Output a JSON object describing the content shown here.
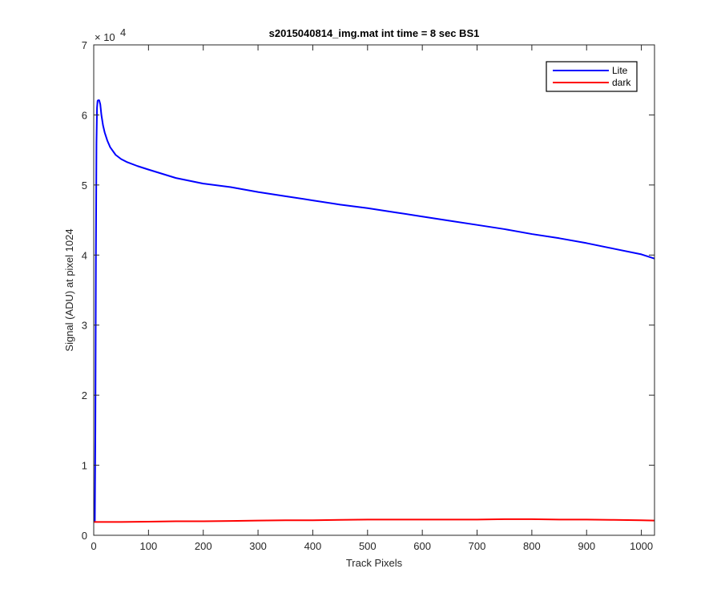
{
  "chart_data": {
    "type": "line",
    "title": "s2015040814_img.mat int time = 8 sec   BS1",
    "xlabel": "Track Pixels",
    "ylabel": "Signal (ADU) at pixel 1024",
    "xlim": [
      0,
      1024
    ],
    "ylim": [
      0,
      70000
    ],
    "x_ticks": [
      0,
      100,
      200,
      300,
      400,
      500,
      600,
      700,
      800,
      900,
      1000
    ],
    "y_ticks": [
      0,
      1,
      2,
      3,
      4,
      5,
      6,
      7
    ],
    "y_exponent": "4",
    "y_exponent_base": "× 10",
    "grid": false,
    "legend_position": "top-right",
    "series": [
      {
        "name": "Lite",
        "color": "#0000ff",
        "x": [
          0,
          2,
          3,
          4,
          5,
          6,
          7,
          8,
          10,
          12,
          14,
          17,
          20,
          25,
          30,
          40,
          50,
          60,
          80,
          100,
          150,
          200,
          250,
          300,
          350,
          400,
          450,
          500,
          550,
          600,
          650,
          700,
          750,
          800,
          850,
          900,
          950,
          1000,
          1024
        ],
        "y": [
          2000,
          2000,
          15000,
          40000,
          56000,
          61000,
          62000,
          62100,
          62100,
          61500,
          60000,
          58500,
          57500,
          56300,
          55400,
          54300,
          53700,
          53300,
          52700,
          52200,
          51000,
          50200,
          49700,
          49000,
          48400,
          47800,
          47200,
          46700,
          46100,
          45500,
          44900,
          44300,
          43700,
          43000,
          42400,
          41700,
          40900,
          40100,
          39500
        ]
      },
      {
        "name": "dark",
        "color": "#ff0000",
        "x": [
          0,
          50,
          100,
          150,
          200,
          250,
          300,
          350,
          400,
          450,
          500,
          550,
          600,
          650,
          700,
          750,
          800,
          850,
          900,
          950,
          1000,
          1024
        ],
        "y": [
          1900,
          1900,
          1950,
          2000,
          2000,
          2050,
          2100,
          2150,
          2150,
          2200,
          2250,
          2250,
          2250,
          2250,
          2250,
          2300,
          2300,
          2250,
          2250,
          2200,
          2150,
          2100
        ]
      }
    ]
  }
}
